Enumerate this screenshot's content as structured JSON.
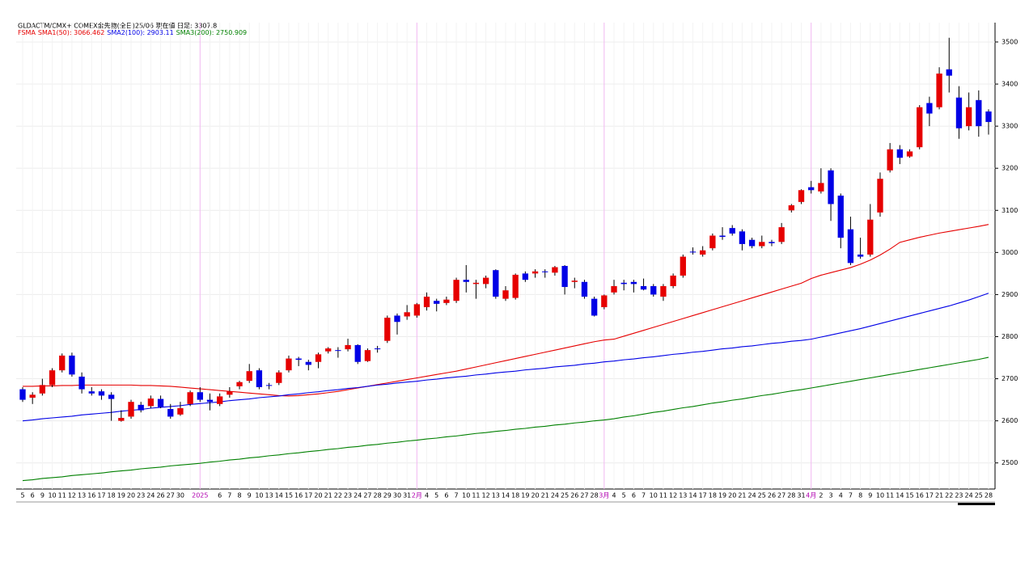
{
  "chart_data": {
    "type": "candlestick",
    "title": "GLDACTM/CMX+ COMEX金先物(全日)25/06 現在値 日足: 3307.8",
    "legend_title": "FSMA",
    "categories": [
      "5",
      "6",
      "9",
      "10",
      "11",
      "12",
      "13",
      "16",
      "17",
      "18",
      "19",
      "20",
      "23",
      "24",
      "26",
      "27",
      "30",
      null,
      "2025",
      null,
      "6",
      "7",
      "8",
      "9",
      "10",
      "13",
      "14",
      "15",
      "16",
      "17",
      "20",
      "21",
      "22",
      "23",
      "24",
      "27",
      "28",
      "29",
      "30",
      "31",
      "2月",
      "4",
      "5",
      "6",
      "7",
      "10",
      "11",
      "12",
      "13",
      "14",
      "18",
      "19",
      "20",
      "21",
      "24",
      "25",
      "26",
      "27",
      "28",
      "3月",
      "4",
      "5",
      "6",
      "7",
      "10",
      "11",
      "12",
      "13",
      "14",
      "17",
      "18",
      "19",
      "20",
      "21",
      "24",
      "25",
      "26",
      "27",
      "28",
      "31",
      "4月",
      "2",
      "3",
      "4",
      "7",
      "8",
      "9",
      "10",
      "11",
      "14",
      "15",
      "16",
      "17",
      "21",
      "22",
      "23",
      "24",
      "25",
      "28"
    ],
    "open": [
      2675,
      2655,
      2665,
      2685,
      2720,
      2755,
      2705,
      2670,
      2670,
      2662,
      2600,
      2610,
      2638,
      2635,
      2652,
      2628,
      2615,
      2640,
      2668,
      2650,
      2640,
      2662,
      2682,
      2695,
      2720,
      2685,
      2690,
      2720,
      2748,
      2740,
      2740,
      2765,
      2768,
      2770,
      2780,
      2742,
      2772,
      2790,
      2850,
      2848,
      2850,
      2870,
      2885,
      2880,
      2885,
      2935,
      2925,
      2925,
      2958,
      2890,
      2892,
      2950,
      2950,
      2955,
      2952,
      2968,
      2930,
      2930,
      2890,
      2870,
      2905,
      2928,
      2930,
      2920,
      2920,
      2895,
      2920,
      2945,
      3002,
      2995,
      3010,
      3040,
      3058,
      3050,
      3030,
      3015,
      3025,
      3025,
      3100,
      3120,
      3155,
      3145,
      3195,
      3135,
      3055,
      2995,
      2995,
      3095,
      3195,
      3245,
      3228,
      3250,
      3355,
      3345,
      3435,
      3368,
      3300,
      3362,
      3335
    ],
    "high": [
      2680,
      2668,
      2700,
      2725,
      2760,
      2762,
      2715,
      2680,
      2675,
      2668,
      2625,
      2650,
      2645,
      2660,
      2660,
      2640,
      2645,
      2672,
      2680,
      2665,
      2665,
      2680,
      2695,
      2735,
      2725,
      2690,
      2720,
      2755,
      2752,
      2745,
      2762,
      2775,
      2775,
      2795,
      2782,
      2772,
      2778,
      2850,
      2855,
      2875,
      2880,
      2905,
      2890,
      2895,
      2940,
      2970,
      2935,
      2945,
      2960,
      2920,
      2950,
      2955,
      2960,
      2960,
      2968,
      2970,
      2940,
      2935,
      2895,
      2900,
      2935,
      2935,
      2935,
      2938,
      2925,
      2925,
      2950,
      2995,
      3012,
      3015,
      3045,
      3060,
      3065,
      3055,
      3035,
      3040,
      3030,
      3070,
      3115,
      3150,
      3170,
      3200,
      3200,
      3140,
      3085,
      3035,
      3115,
      3190,
      3260,
      3255,
      3245,
      3350,
      3370,
      3440,
      3510,
      3395,
      3380,
      3385,
      3340
    ],
    "low": [
      2645,
      2640,
      2660,
      2680,
      2715,
      2705,
      2665,
      2660,
      2650,
      2600,
      2598,
      2605,
      2620,
      2630,
      2630,
      2605,
      2612,
      2635,
      2645,
      2625,
      2635,
      2655,
      2675,
      2690,
      2675,
      2675,
      2685,
      2715,
      2730,
      2720,
      2725,
      2760,
      2750,
      2765,
      2735,
      2740,
      2762,
      2785,
      2805,
      2840,
      2845,
      2862,
      2860,
      2875,
      2880,
      2905,
      2890,
      2915,
      2890,
      2885,
      2888,
      2930,
      2940,
      2940,
      2945,
      2900,
      2915,
      2890,
      2848,
      2865,
      2900,
      2910,
      2905,
      2910,
      2895,
      2885,
      2915,
      2940,
      2995,
      2990,
      3005,
      3030,
      3040,
      3005,
      3010,
      3010,
      3015,
      3020,
      3095,
      3115,
      3140,
      3140,
      3075,
      3010,
      2970,
      2985,
      2990,
      3085,
      3190,
      3210,
      3225,
      3245,
      3300,
      3340,
      3380,
      3270,
      3290,
      3275,
      3280
    ],
    "close": [
      2650,
      2662,
      2685,
      2720,
      2755,
      2710,
      2675,
      2665,
      2660,
      2652,
      2607,
      2645,
      2625,
      2653,
      2633,
      2610,
      2630,
      2668,
      2650,
      2645,
      2658,
      2670,
      2692,
      2718,
      2680,
      2683,
      2715,
      2748,
      2745,
      2733,
      2758,
      2772,
      2766,
      2780,
      2740,
      2768,
      2770,
      2845,
      2835,
      2858,
      2877,
      2895,
      2878,
      2888,
      2935,
      2930,
      2928,
      2940,
      2895,
      2910,
      2947,
      2935,
      2955,
      2953,
      2965,
      2918,
      2933,
      2895,
      2850,
      2898,
      2920,
      2925,
      2925,
      2912,
      2900,
      2920,
      2945,
      2990,
      3000,
      3005,
      3040,
      3037,
      3045,
      3020,
      3015,
      3025,
      3022,
      3060,
      3112,
      3148,
      3148,
      3165,
      3115,
      3035,
      2975,
      2990,
      3078,
      3175,
      3245,
      3225,
      3240,
      3345,
      3330,
      3425,
      3420,
      3295,
      3345,
      3300,
      3310
    ],
    "up_color": "#e60000",
    "down_color": "#0000e6",
    "series": [
      {
        "name": "SMA1(50): 3066.462",
        "color": "#e60000",
        "values": [
          2682,
          2682,
          2683,
          2683,
          2684,
          2684,
          2685,
          2685,
          2685,
          2685,
          2685,
          2685,
          2684,
          2684,
          2683,
          2682,
          2680,
          2678,
          2676,
          2674,
          2672,
          2670,
          2668,
          2666,
          2664,
          2662,
          2660,
          2659,
          2660,
          2662,
          2664,
          2667,
          2670,
          2674,
          2678,
          2682,
          2686,
          2690,
          2694,
          2698,
          2702,
          2706,
          2710,
          2714,
          2718,
          2723,
          2728,
          2733,
          2738,
          2743,
          2748,
          2753,
          2758,
          2763,
          2768,
          2773,
          2778,
          2783,
          2788,
          2792,
          2794,
          2801,
          2808,
          2815,
          2822,
          2829,
          2836,
          2843,
          2850,
          2857,
          2864,
          2871,
          2878,
          2885,
          2892,
          2899,
          2906,
          2913,
          2920,
          2927,
          2938,
          2946,
          2952,
          2958,
          2964,
          2972,
          2982,
          2994,
          3008,
          3024,
          3030,
          3036,
          3041,
          3046,
          3050,
          3054,
          3058,
          3062,
          3066.462
        ]
      },
      {
        "name": "SMA2(100): 2903.11",
        "color": "#0000e6",
        "values": [
          2600,
          2602,
          2605,
          2607,
          2609,
          2611,
          2614,
          2616,
          2618,
          2620,
          2623,
          2625,
          2627,
          2630,
          2632,
          2634,
          2636,
          2639,
          2641,
          2643,
          2645,
          2648,
          2650,
          2652,
          2655,
          2657,
          2659,
          2662,
          2664,
          2667,
          2669,
          2672,
          2674,
          2677,
          2679,
          2682,
          2685,
          2687,
          2690,
          2692,
          2694,
          2697,
          2699,
          2702,
          2704,
          2706,
          2709,
          2711,
          2714,
          2716,
          2718,
          2721,
          2723,
          2725,
          2728,
          2730,
          2732,
          2735,
          2737,
          2740,
          2742,
          2745,
          2747,
          2750,
          2752,
          2755,
          2758,
          2760,
          2763,
          2765,
          2768,
          2771,
          2773,
          2776,
          2778,
          2781,
          2784,
          2786,
          2789,
          2791,
          2794,
          2799,
          2804,
          2809,
          2814,
          2819,
          2825,
          2831,
          2837,
          2843,
          2849,
          2855,
          2861,
          2867,
          2873,
          2880,
          2887,
          2895,
          2903.11
        ]
      },
      {
        "name": "SMA3(200): 2750.909",
        "color": "#008000",
        "values": [
          2458,
          2460,
          2463,
          2465,
          2467,
          2470,
          2472,
          2474,
          2476,
          2479,
          2481,
          2483,
          2486,
          2488,
          2490,
          2493,
          2495,
          2497,
          2499,
          2502,
          2504,
          2507,
          2509,
          2512,
          2514,
          2517,
          2519,
          2522,
          2524,
          2527,
          2529,
          2532,
          2534,
          2537,
          2539,
          2542,
          2544,
          2547,
          2549,
          2552,
          2554,
          2557,
          2559,
          2562,
          2564,
          2567,
          2570,
          2572,
          2575,
          2577,
          2580,
          2582,
          2585,
          2587,
          2590,
          2592,
          2595,
          2597,
          2600,
          2602,
          2605,
          2609,
          2612,
          2616,
          2620,
          2623,
          2627,
          2631,
          2634,
          2638,
          2642,
          2645,
          2649,
          2652,
          2656,
          2660,
          2663,
          2667,
          2671,
          2674,
          2678,
          2682,
          2686,
          2690,
          2694,
          2698,
          2702,
          2706,
          2710,
          2714,
          2718,
          2722,
          2726,
          2730,
          2734,
          2738,
          2742,
          2746,
          2750.909
        ]
      }
    ],
    "ylim": [
      2438,
      3546
    ],
    "yticks": [
      2500,
      2600,
      2700,
      2800,
      2900,
      3000,
      3100,
      3200,
      3300,
      3400,
      3500
    ],
    "grid": true
  }
}
